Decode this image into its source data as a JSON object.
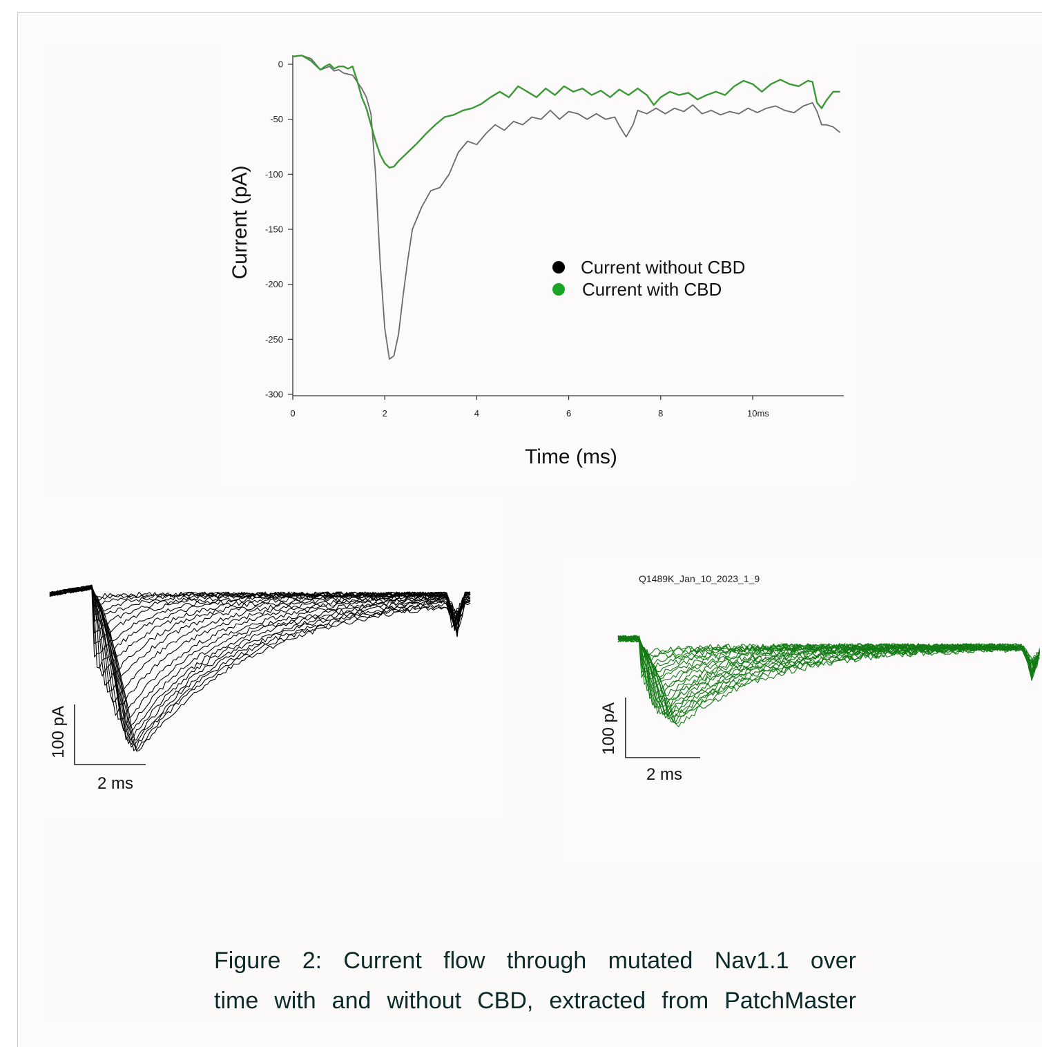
{
  "chart_data": [
    {
      "type": "line",
      "xlabel": "Time (ms)",
      "ylabel": "Current (pA)",
      "xlim": [
        0,
        11.9
      ],
      "ylim": [
        -300,
        8
      ],
      "x_ticks": [
        "0",
        "2",
        "4",
        "6",
        "8",
        "10ms"
      ],
      "y_ticks": [
        "0",
        "-50",
        "-100",
        "-150",
        "-200",
        "-250",
        "-300"
      ],
      "legend_position": "center-right",
      "grid": false,
      "series": [
        {
          "name": "Current  without CBD",
          "marker_color": "#000000",
          "line_color": "#6a6a6a",
          "points": [
            [
              0,
              7
            ],
            [
              0.2,
              8
            ],
            [
              0.4,
              5
            ],
            [
              0.5,
              0
            ],
            [
              0.6,
              -5
            ],
            [
              0.8,
              -2
            ],
            [
              0.9,
              -6
            ],
            [
              1.0,
              -5
            ],
            [
              1.1,
              -8
            ],
            [
              1.3,
              -10
            ],
            [
              1.5,
              -22
            ],
            [
              1.6,
              -30
            ],
            [
              1.7,
              -45
            ],
            [
              1.8,
              -100
            ],
            [
              1.9,
              -180
            ],
            [
              2.0,
              -240
            ],
            [
              2.1,
              -268
            ],
            [
              2.2,
              -265
            ],
            [
              2.3,
              -245
            ],
            [
              2.4,
              -210
            ],
            [
              2.5,
              -178
            ],
            [
              2.6,
              -150
            ],
            [
              2.8,
              -130
            ],
            [
              3.0,
              -115
            ],
            [
              3.2,
              -112
            ],
            [
              3.4,
              -100
            ],
            [
              3.6,
              -80
            ],
            [
              3.8,
              -70
            ],
            [
              4.0,
              -73
            ],
            [
              4.2,
              -63
            ],
            [
              4.4,
              -55
            ],
            [
              4.6,
              -60
            ],
            [
              4.8,
              -52
            ],
            [
              5.0,
              -55
            ],
            [
              5.2,
              -48
            ],
            [
              5.4,
              -50
            ],
            [
              5.6,
              -42
            ],
            [
              5.8,
              -50
            ],
            [
              6.0,
              -43
            ],
            [
              6.2,
              -45
            ],
            [
              6.4,
              -50
            ],
            [
              6.6,
              -45
            ],
            [
              6.8,
              -50
            ],
            [
              7.0,
              -48
            ],
            [
              7.1,
              -56
            ],
            [
              7.25,
              -66
            ],
            [
              7.4,
              -55
            ],
            [
              7.5,
              -42
            ],
            [
              7.7,
              -45
            ],
            [
              7.9,
              -40
            ],
            [
              8.1,
              -45
            ],
            [
              8.3,
              -40
            ],
            [
              8.5,
              -43
            ],
            [
              8.7,
              -37
            ],
            [
              8.9,
              -45
            ],
            [
              9.1,
              -42
            ],
            [
              9.3,
              -46
            ],
            [
              9.5,
              -43
            ],
            [
              9.7,
              -45
            ],
            [
              9.9,
              -40
            ],
            [
              10.1,
              -44
            ],
            [
              10.3,
              -40
            ],
            [
              10.5,
              -38
            ],
            [
              10.7,
              -42
            ],
            [
              10.9,
              -44
            ],
            [
              11.1,
              -38
            ],
            [
              11.3,
              -35
            ],
            [
              11.4,
              -43
            ],
            [
              11.5,
              -55
            ],
            [
              11.6,
              -55
            ],
            [
              11.75,
              -57
            ],
            [
              11.9,
              -62
            ]
          ]
        },
        {
          "name": "Current  with CBD",
          "marker_color": "#1aa526",
          "line_color": "#3a9a35",
          "points": [
            [
              0,
              7
            ],
            [
              0.2,
              8
            ],
            [
              0.4,
              3
            ],
            [
              0.6,
              -5
            ],
            [
              0.7,
              -2
            ],
            [
              0.8,
              0
            ],
            [
              0.9,
              -4
            ],
            [
              1.0,
              -2
            ],
            [
              1.1,
              -2
            ],
            [
              1.2,
              -4
            ],
            [
              1.3,
              -2
            ],
            [
              1.4,
              -15
            ],
            [
              1.5,
              -30
            ],
            [
              1.6,
              -40
            ],
            [
              1.7,
              -55
            ],
            [
              1.8,
              -70
            ],
            [
              1.9,
              -82
            ],
            [
              2.0,
              -90
            ],
            [
              2.1,
              -94
            ],
            [
              2.2,
              -93
            ],
            [
              2.3,
              -88
            ],
            [
              2.5,
              -80
            ],
            [
              2.7,
              -72
            ],
            [
              2.9,
              -63
            ],
            [
              3.1,
              -55
            ],
            [
              3.3,
              -48
            ],
            [
              3.5,
              -46
            ],
            [
              3.7,
              -42
            ],
            [
              3.9,
              -40
            ],
            [
              4.1,
              -36
            ],
            [
              4.3,
              -30
            ],
            [
              4.5,
              -25
            ],
            [
              4.7,
              -30
            ],
            [
              4.9,
              -20
            ],
            [
              5.1,
              -25
            ],
            [
              5.3,
              -30
            ],
            [
              5.5,
              -22
            ],
            [
              5.7,
              -28
            ],
            [
              5.9,
              -20
            ],
            [
              6.1,
              -25
            ],
            [
              6.3,
              -22
            ],
            [
              6.5,
              -28
            ],
            [
              6.7,
              -24
            ],
            [
              6.9,
              -30
            ],
            [
              7.1,
              -23
            ],
            [
              7.3,
              -28
            ],
            [
              7.5,
              -22
            ],
            [
              7.7,
              -28
            ],
            [
              7.85,
              -37
            ],
            [
              8.0,
              -30
            ],
            [
              8.2,
              -25
            ],
            [
              8.4,
              -28
            ],
            [
              8.6,
              -26
            ],
            [
              8.8,
              -32
            ],
            [
              9.0,
              -28
            ],
            [
              9.2,
              -25
            ],
            [
              9.4,
              -28
            ],
            [
              9.6,
              -20
            ],
            [
              9.8,
              -15
            ],
            [
              10.0,
              -18
            ],
            [
              10.2,
              -25
            ],
            [
              10.4,
              -18
            ],
            [
              10.6,
              -14
            ],
            [
              10.8,
              -18
            ],
            [
              11.0,
              -20
            ],
            [
              11.2,
              -15
            ],
            [
              11.3,
              -16
            ],
            [
              11.4,
              -35
            ],
            [
              11.5,
              -40
            ],
            [
              11.6,
              -33
            ],
            [
              11.75,
              -25
            ],
            [
              11.9,
              -25
            ]
          ]
        }
      ]
    },
    {
      "type": "line",
      "description_none": "",
      "scale_bar": {
        "y": "100 pA",
        "x": "2 ms"
      },
      "trace_color": "#000000",
      "sweep_count": 24,
      "sweep_peaks_pA": [
        -10,
        -20,
        -35,
        -50,
        -65,
        -80,
        -95,
        -110,
        -125,
        -140,
        -155,
        -170,
        -185,
        -200,
        -215,
        -225,
        -235,
        -245,
        -250,
        -255,
        -258,
        -260,
        -262,
        -265
      ],
      "sweep_peak_times_ms": [
        0.5,
        0.6,
        0.7,
        0.8,
        0.9,
        1.0,
        1.1,
        1.2,
        1.3,
        1.4,
        1.5,
        1.6,
        1.7,
        1.8,
        1.9,
        2.0,
        2.05,
        2.1,
        2.15,
        2.2,
        2.25,
        2.3,
        2.35,
        2.4
      ]
    },
    {
      "type": "line",
      "title": "Q1489K_Jan_10_2023_1_9",
      "scale_bar": {
        "y": "100 pA",
        "x": "2 ms"
      },
      "trace_color": "#137a14",
      "sweep_count": 24,
      "sweep_peaks_pA": [
        -20,
        -28,
        -36,
        -44,
        -52,
        -60,
        -68,
        -76,
        -84,
        -92,
        -100,
        -105,
        -110,
        -115,
        -118,
        -121,
        -124,
        -126,
        -128,
        -130,
        -132,
        -134,
        -136,
        -140
      ],
      "sweep_peak_times_ms": [
        0.4,
        0.45,
        0.5,
        0.55,
        0.6,
        0.65,
        0.7,
        0.75,
        0.8,
        0.85,
        0.9,
        0.95,
        1.0,
        1.05,
        1.1,
        1.15,
        1.2,
        1.25,
        1.3,
        1.35,
        1.4,
        1.45,
        1.5,
        1.55
      ]
    }
  ],
  "caption": {
    "line1": "Figure  2:  Current  flow  through  mutated  Nav1.1  over",
    "line2": "time with and without CBD, extracted from PatchMaster"
  }
}
